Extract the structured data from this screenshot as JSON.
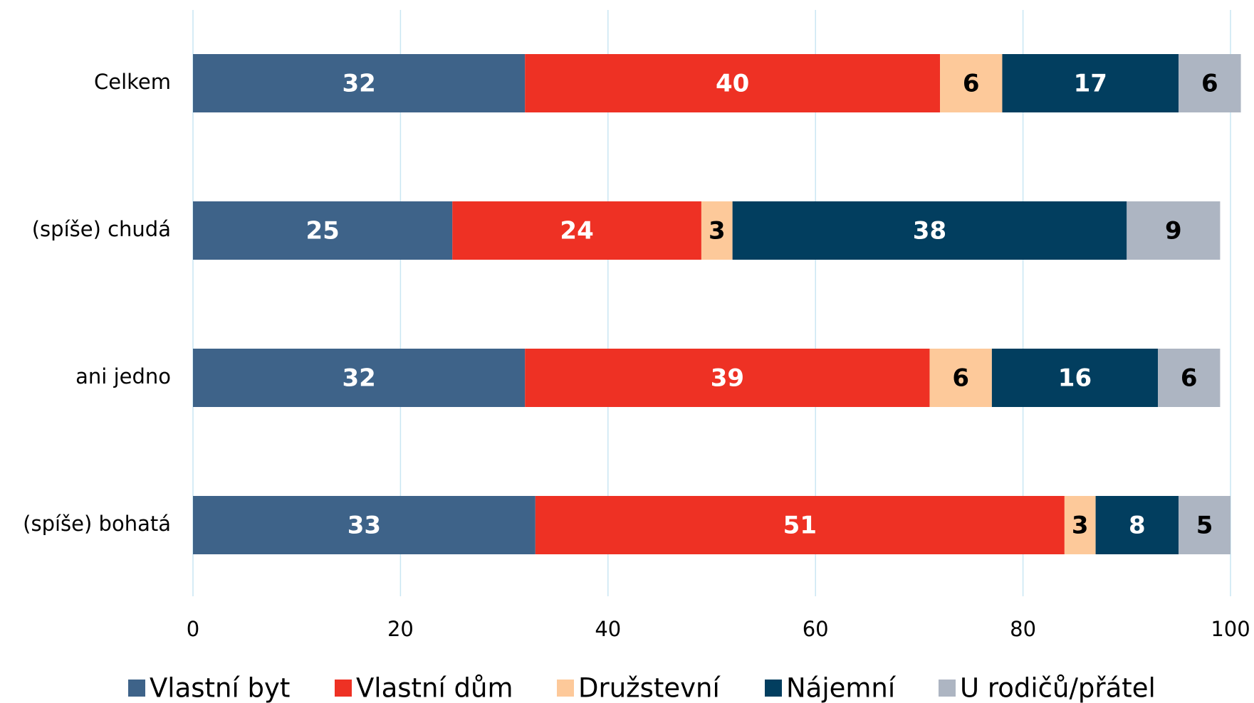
{
  "chart_data": {
    "type": "stacked_barh",
    "categories": [
      "Celkem",
      "(spíše) chudá",
      "ani jedno",
      "(spíše) bohatá"
    ],
    "series": [
      {
        "name": "Vlastní byt",
        "color": "#3e6389",
        "values": [
          32,
          25,
          32,
          33
        ]
      },
      {
        "name": "Vlastní dům",
        "color": "#ee3124",
        "values": [
          40,
          24,
          39,
          51
        ]
      },
      {
        "name": "Družstevní",
        "color": "#fdc99a",
        "values": [
          6,
          3,
          6,
          3
        ]
      },
      {
        "name": "Nájemní",
        "color": "#023e5f",
        "values": [
          17,
          38,
          16,
          8
        ]
      },
      {
        "name": "U rodičů/přátel",
        "color": "#adb5c2",
        "values": [
          6,
          9,
          6,
          5
        ]
      }
    ],
    "xlim": [
      0,
      100
    ],
    "xticks": [
      0,
      20,
      40,
      60,
      80,
      100
    ],
    "grid": true,
    "legend": "bottom"
  }
}
